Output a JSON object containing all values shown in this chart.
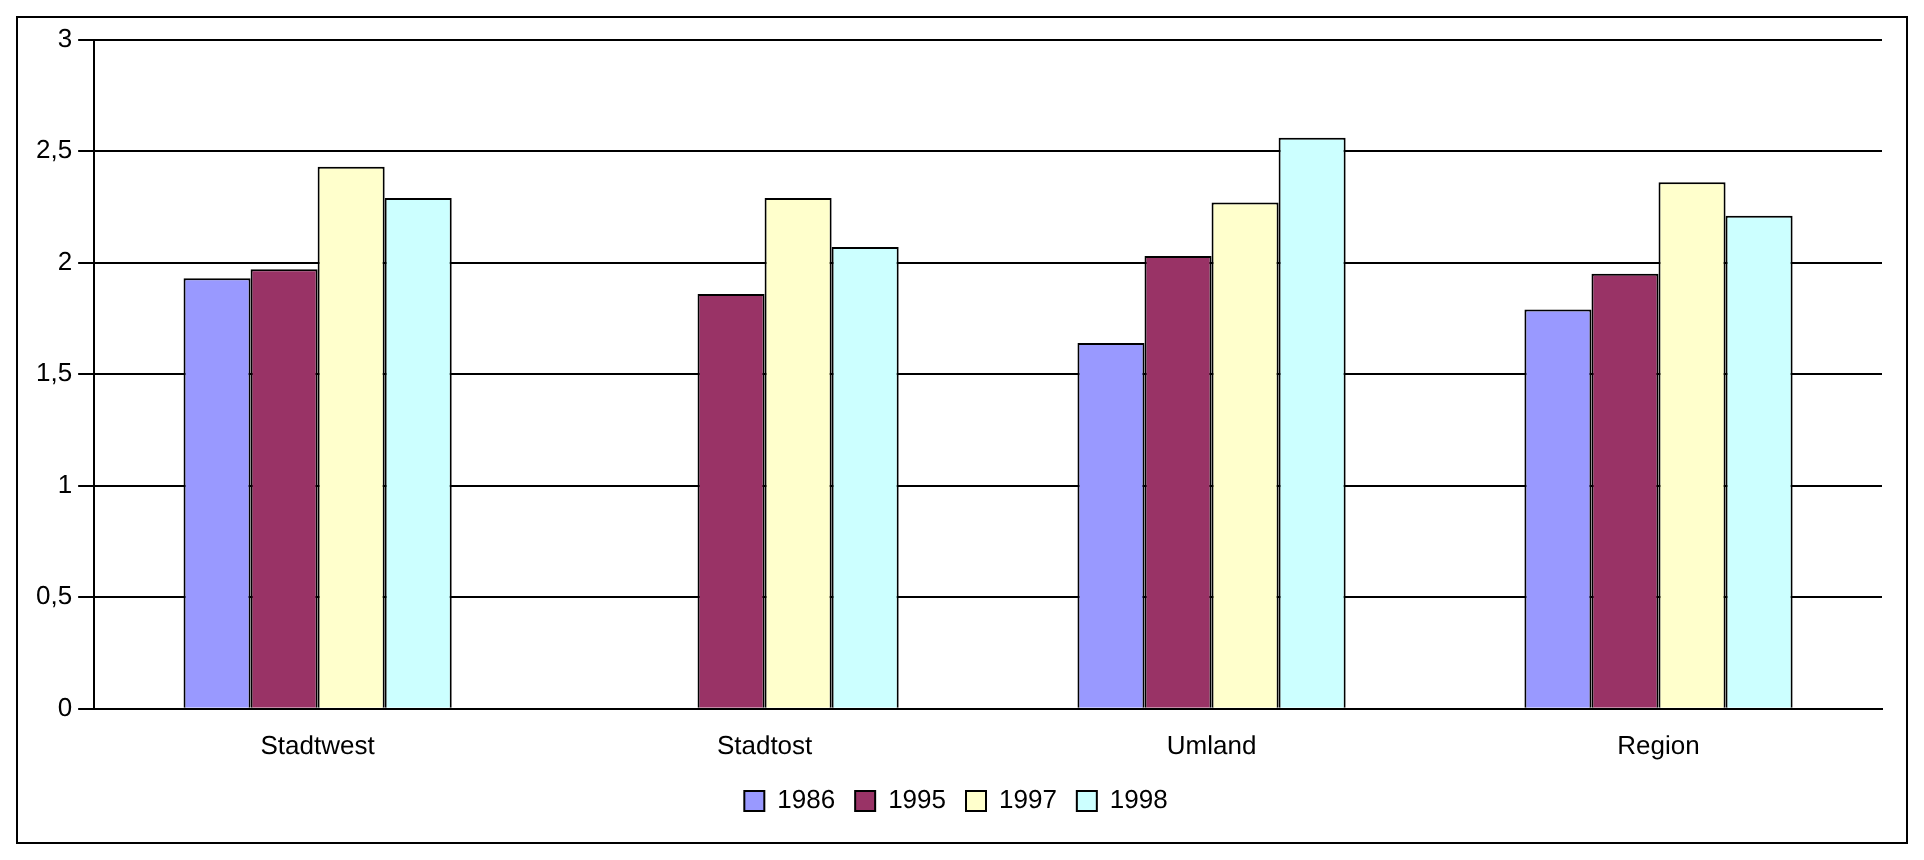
{
  "chart_data": {
    "type": "bar",
    "categories": [
      "Stadtwest",
      "Stadtost",
      "Umland",
      "Region"
    ],
    "series": [
      {
        "name": "1986",
        "color": "#9999ff",
        "values": [
          1.93,
          null,
          1.64,
          1.79
        ]
      },
      {
        "name": "1995",
        "color": "#993366",
        "values": [
          1.97,
          1.86,
          2.03,
          1.95
        ]
      },
      {
        "name": "1997",
        "color": "#ffffcc",
        "values": [
          2.43,
          2.29,
          2.27,
          2.36
        ]
      },
      {
        "name": "1998",
        "color": "#ccffff",
        "values": [
          2.29,
          2.07,
          2.56,
          2.21
        ]
      }
    ],
    "ylim": [
      0,
      3
    ],
    "yticks": [
      0,
      {
        "value": 0.5,
        "label": "0,5"
      },
      1,
      {
        "value": 1.5,
        "label": "1,5"
      },
      2,
      {
        "value": 2.5,
        "label": "2,5"
      },
      3
    ],
    "grid": "y",
    "legend": "bottom"
  }
}
